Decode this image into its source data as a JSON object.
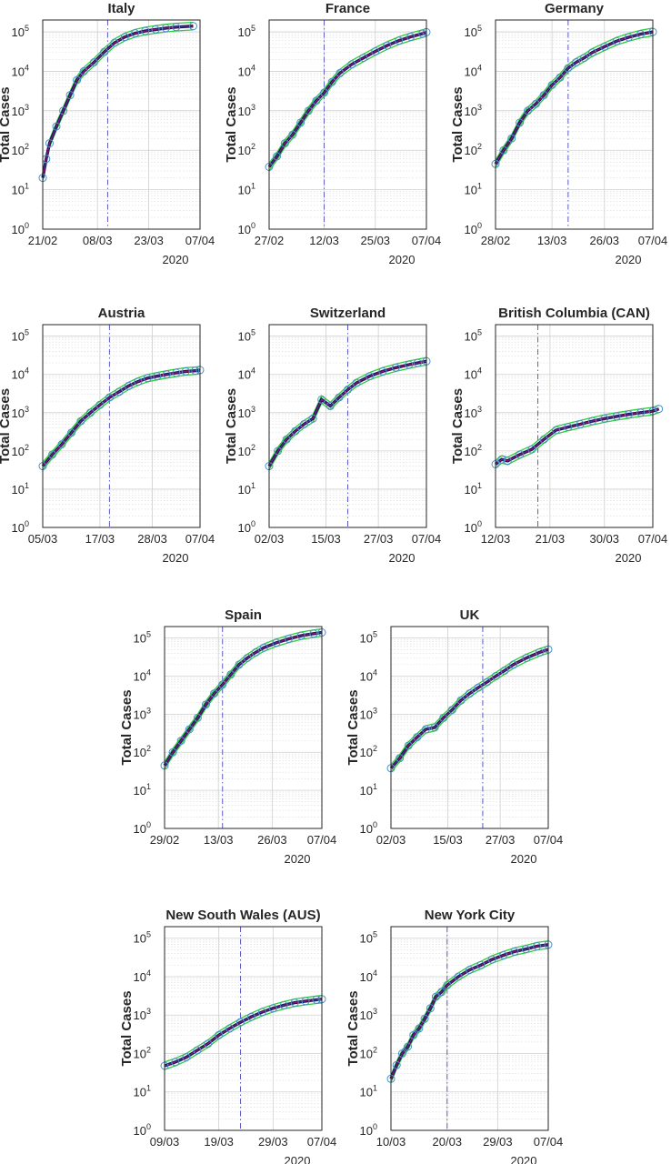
{
  "figure": {
    "ylabel": "Total Cases",
    "year_label": "2020",
    "y_ticks": [
      {
        "mantissa": "10",
        "exp": "0"
      },
      {
        "mantissa": "10",
        "exp": "1"
      },
      {
        "mantissa": "10",
        "exp": "2"
      },
      {
        "mantissa": "10",
        "exp": "3"
      },
      {
        "mantissa": "10",
        "exp": "4"
      },
      {
        "mantissa": "10",
        "exp": "5"
      }
    ],
    "colors": {
      "data_marker": "#4a90c8",
      "fit_line": "#1a1a5e",
      "fit_center": "#b0187a",
      "ci_band": "#2ecc40",
      "intervention_line": "#5a5acc",
      "grid": "#d9d9d9"
    }
  },
  "chart_data": [
    {
      "type": "line",
      "title": "Italy",
      "yscale": "log",
      "ylim": [
        1,
        200000
      ],
      "x_ticks": [
        "21/02",
        "08/03",
        "23/03",
        "07/04"
      ],
      "intervention": "11/03",
      "series": [
        {
          "values": [
            [
              0,
              20
            ],
            [
              1,
              60
            ],
            [
              2,
              150
            ],
            [
              4,
              400
            ],
            [
              6,
              1000
            ],
            [
              8,
              2500
            ],
            [
              10,
              6000
            ],
            [
              12,
              10000
            ],
            [
              15,
              17000
            ],
            [
              18,
              31000
            ],
            [
              21,
              53000
            ],
            [
              24,
              74000
            ],
            [
              27,
              92000
            ],
            [
              30,
              105000
            ],
            [
              33,
              115000
            ],
            [
              36,
              125000
            ],
            [
              39,
              132000
            ],
            [
              44,
              140000
            ]
          ]
        }
      ]
    },
    {
      "type": "line",
      "title": "France",
      "yscale": "log",
      "ylim": [
        1,
        200000
      ],
      "x_ticks": [
        "27/02",
        "12/03",
        "25/03",
        "07/04"
      ],
      "intervention": "12/03",
      "series": [
        {
          "values": [
            [
              0,
              38
            ],
            [
              2,
              70
            ],
            [
              4,
              150
            ],
            [
              6,
              250
            ],
            [
              8,
              500
            ],
            [
              10,
              1000
            ],
            [
              12,
              1800
            ],
            [
              14,
              2900
            ],
            [
              16,
              5400
            ],
            [
              18,
              9000
            ],
            [
              21,
              15000
            ],
            [
              24,
              22000
            ],
            [
              27,
              32000
            ],
            [
              30,
              45000
            ],
            [
              33,
              60000
            ],
            [
              36,
              75000
            ],
            [
              39,
              90000
            ],
            [
              40,
              98000
            ]
          ]
        }
      ]
    },
    {
      "type": "line",
      "title": "Germany",
      "yscale": "log",
      "ylim": [
        1,
        200000
      ],
      "x_ticks": [
        "28/02",
        "13/03",
        "26/03",
        "07/04"
      ],
      "intervention": "17/03",
      "series": [
        {
          "values": [
            [
              0,
              45
            ],
            [
              2,
              100
            ],
            [
              4,
              200
            ],
            [
              6,
              500
            ],
            [
              8,
              1000
            ],
            [
              10,
              1500
            ],
            [
              12,
              2500
            ],
            [
              14,
              4500
            ],
            [
              16,
              7000
            ],
            [
              18,
              12000
            ],
            [
              20,
              17000
            ],
            [
              22,
              22000
            ],
            [
              24,
              30000
            ],
            [
              27,
              42000
            ],
            [
              30,
              58000
            ],
            [
              33,
              73000
            ],
            [
              36,
              88000
            ],
            [
              39,
              100000
            ]
          ]
        }
      ]
    },
    {
      "type": "line",
      "title": "Austria",
      "yscale": "log",
      "ylim": [
        1,
        200000
      ],
      "x_ticks": [
        "05/03",
        "17/03",
        "28/03",
        "07/04"
      ],
      "intervention": "19/03",
      "series": [
        {
          "values": [
            [
              0,
              40
            ],
            [
              2,
              80
            ],
            [
              4,
              150
            ],
            [
              6,
              300
            ],
            [
              8,
              600
            ],
            [
              10,
              1000
            ],
            [
              12,
              1600
            ],
            [
              14,
              2500
            ],
            [
              16,
              3500
            ],
            [
              18,
              5000
            ],
            [
              20,
              6500
            ],
            [
              22,
              8000
            ],
            [
              24,
              9000
            ],
            [
              26,
              10000
            ],
            [
              28,
              11000
            ],
            [
              30,
              12000
            ],
            [
              32,
              12500
            ],
            [
              33,
              13000
            ]
          ]
        }
      ]
    },
    {
      "type": "line",
      "title": "Switzerland",
      "yscale": "log",
      "ylim": [
        1,
        200000
      ],
      "x_ticks": [
        "02/03",
        "15/03",
        "27/03",
        "07/04"
      ],
      "intervention": "20/03",
      "series": [
        {
          "values": [
            [
              0,
              40
            ],
            [
              2,
              100
            ],
            [
              4,
              200
            ],
            [
              6,
              330
            ],
            [
              8,
              500
            ],
            [
              10,
              700
            ],
            [
              12,
              2200
            ],
            [
              14,
              1500
            ],
            [
              16,
              2500
            ],
            [
              18,
              4000
            ],
            [
              20,
              6000
            ],
            [
              23,
              9000
            ],
            [
              26,
              12000
            ],
            [
              29,
              15000
            ],
            [
              32,
              18000
            ],
            [
              34,
              20000
            ],
            [
              36,
              22000
            ]
          ]
        }
      ]
    },
    {
      "type": "line",
      "title": "British Columbia (CAN)",
      "yscale": "log",
      "ylim": [
        1,
        200000
      ],
      "x_ticks": [
        "12/03",
        "21/03",
        "30/03",
        "07/04"
      ],
      "intervention": "19/03",
      "series": [
        {
          "values": [
            [
              0,
              45
            ],
            [
              1,
              60
            ],
            [
              2,
              55
            ],
            [
              4,
              80
            ],
            [
              6,
              110
            ],
            [
              8,
              200
            ],
            [
              10,
              350
            ],
            [
              12,
              420
            ],
            [
              14,
              500
            ],
            [
              16,
              600
            ],
            [
              18,
              700
            ],
            [
              20,
              800
            ],
            [
              22,
              900
            ],
            [
              24,
              1000
            ],
            [
              26,
              1100
            ],
            [
              27,
              1250
            ]
          ]
        }
      ]
    },
    {
      "type": "line",
      "title": "Spain",
      "yscale": "log",
      "ylim": [
        1,
        200000
      ],
      "x_ticks": [
        "29/02",
        "13/03",
        "26/03",
        "07/04"
      ],
      "intervention": "14/03",
      "series": [
        {
          "values": [
            [
              0,
              45
            ],
            [
              2,
              100
            ],
            [
              4,
              200
            ],
            [
              6,
              400
            ],
            [
              8,
              800
            ],
            [
              10,
              1800
            ],
            [
              12,
              3500
            ],
            [
              14,
              6000
            ],
            [
              16,
              11000
            ],
            [
              18,
              20000
            ],
            [
              20,
              30000
            ],
            [
              22,
              42000
            ],
            [
              24,
              56000
            ],
            [
              27,
              75000
            ],
            [
              30,
              95000
            ],
            [
              33,
              115000
            ],
            [
              36,
              130000
            ],
            [
              38,
              140000
            ]
          ]
        }
      ]
    },
    {
      "type": "line",
      "title": "UK",
      "yscale": "log",
      "ylim": [
        1,
        200000
      ],
      "x_ticks": [
        "02/03",
        "15/03",
        "27/03",
        "07/04"
      ],
      "intervention": "23/03",
      "series": [
        {
          "values": [
            [
              0,
              38
            ],
            [
              2,
              70
            ],
            [
              4,
              150
            ],
            [
              6,
              250
            ],
            [
              8,
              400
            ],
            [
              10,
              450
            ],
            [
              12,
              800
            ],
            [
              14,
              1300
            ],
            [
              16,
              2300
            ],
            [
              18,
              3500
            ],
            [
              20,
              5000
            ],
            [
              22,
              7000
            ],
            [
              24,
              10000
            ],
            [
              26,
              14000
            ],
            [
              28,
              20000
            ],
            [
              31,
              30000
            ],
            [
              34,
              42000
            ],
            [
              36,
              50000
            ]
          ]
        }
      ]
    },
    {
      "type": "line",
      "title": "New South Wales (AUS)",
      "yscale": "log",
      "ylim": [
        1,
        200000
      ],
      "x_ticks": [
        "09/03",
        "19/03",
        "29/03",
        "07/04"
      ],
      "intervention": "23/03",
      "series": [
        {
          "values": [
            [
              0,
              48
            ],
            [
              2,
              60
            ],
            [
              4,
              80
            ],
            [
              6,
              120
            ],
            [
              8,
              180
            ],
            [
              10,
              300
            ],
            [
              12,
              450
            ],
            [
              14,
              650
            ],
            [
              16,
              900
            ],
            [
              18,
              1200
            ],
            [
              20,
              1500
            ],
            [
              22,
              1800
            ],
            [
              24,
              2100
            ],
            [
              26,
              2300
            ],
            [
              28,
              2500
            ],
            [
              29,
              2600
            ]
          ]
        }
      ]
    },
    {
      "type": "line",
      "title": "New York City",
      "yscale": "log",
      "ylim": [
        1,
        200000
      ],
      "x_ticks": [
        "10/03",
        "20/03",
        "29/03",
        "07/04"
      ],
      "intervention": "20/03",
      "series": [
        {
          "values": [
            [
              0,
              22
            ],
            [
              1,
              50
            ],
            [
              2,
              100
            ],
            [
              3,
              150
            ],
            [
              4,
              300
            ],
            [
              5,
              450
            ],
            [
              6,
              800
            ],
            [
              7,
              1500
            ],
            [
              8,
              3000
            ],
            [
              9,
              4000
            ],
            [
              10,
              6000
            ],
            [
              12,
              10000
            ],
            [
              14,
              15000
            ],
            [
              16,
              20000
            ],
            [
              18,
              28000
            ],
            [
              20,
              36000
            ],
            [
              22,
              45000
            ],
            [
              24,
              52000
            ],
            [
              26,
              62000
            ],
            [
              28,
              68000
            ]
          ]
        }
      ]
    }
  ]
}
